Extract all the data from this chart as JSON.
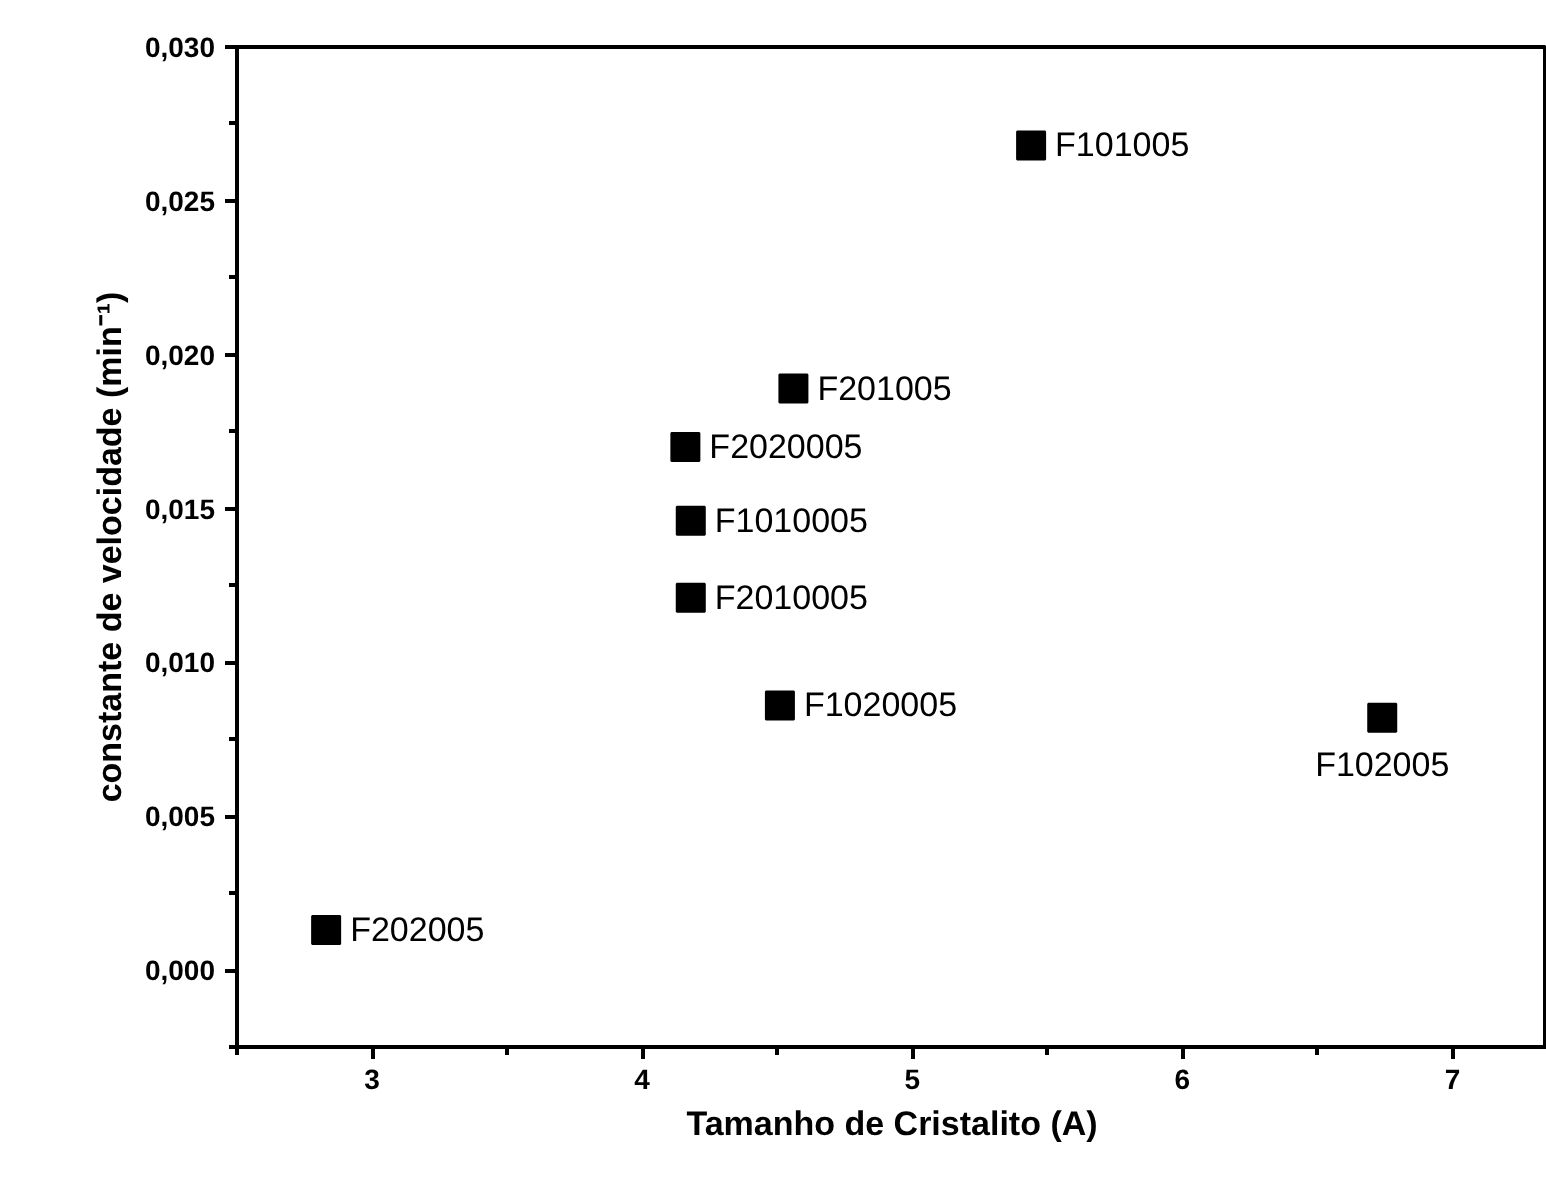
{
  "chart_data": {
    "type": "scatter",
    "xlabel": "Tamanho de Cristalito (A)",
    "ylabel": "constante de velocidade (min⁻¹)",
    "series": [
      {
        "color": "#000000",
        "x": [
          5.44,
          4.56,
          4.16,
          4.18,
          4.18,
          4.51,
          6.74,
          2.83
        ],
        "values": [
          0.0268,
          0.0189,
          0.017,
          0.0146,
          0.0121,
          0.0086,
          0.0082,
          0.0013
        ]
      }
    ],
    "annotations": [
      {
        "text": "F101005",
        "x": 5.44,
        "y": 0.0268
      },
      {
        "text": "F201005",
        "x": 4.56,
        "y": 0.0189
      },
      {
        "text": "F2020005",
        "x": 4.16,
        "y": 0.017
      },
      {
        "text": "F1010005",
        "x": 4.18,
        "y": 0.0146
      },
      {
        "text": "F2010005",
        "x": 4.18,
        "y": 0.0121
      },
      {
        "text": "F1020005",
        "x": 4.51,
        "y": 0.0086
      },
      {
        "text": "F102005",
        "x": 6.74,
        "y": 0.0082
      },
      {
        "text": "F202005",
        "x": 2.83,
        "y": 0.0013
      }
    ],
    "marker": "square",
    "grid": false,
    "xlim": [
      2.5,
      7.35
    ],
    "ylim": [
      -0.0025,
      0.03
    ],
    "xticks": [
      3,
      4,
      5,
      6,
      7
    ],
    "yticks": [
      {
        "value": 0,
        "label": "0,000"
      },
      {
        "value": 0.005,
        "label": "0,005"
      },
      {
        "value": 0.01,
        "label": "0,010"
      },
      {
        "value": 0.015,
        "label": "0,015"
      },
      {
        "value": 0.02,
        "label": "0,020"
      },
      {
        "value": 0.025,
        "label": "0,025"
      },
      {
        "value": 0.03,
        "label": "0,030"
      }
    ]
  }
}
